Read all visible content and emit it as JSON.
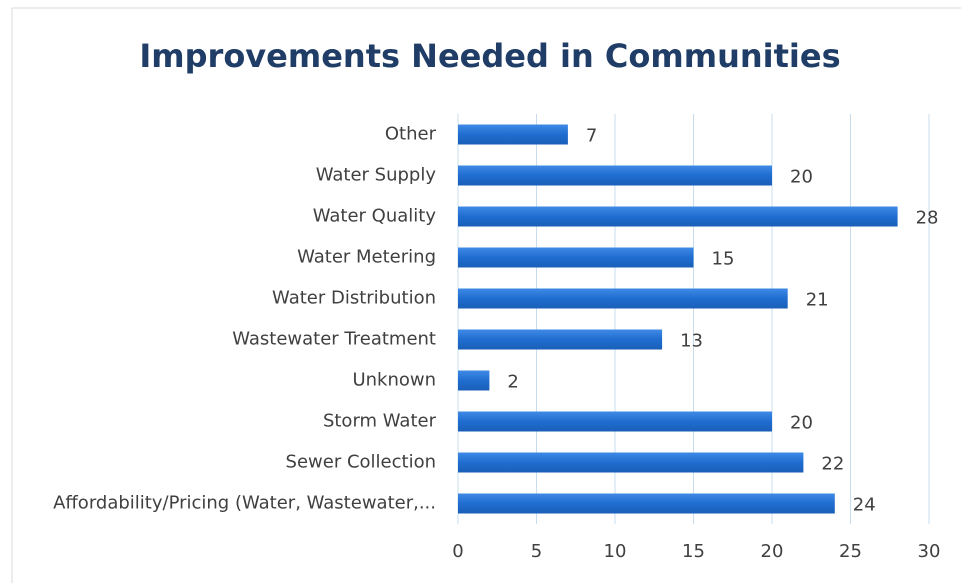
{
  "chart_data": {
    "type": "bar",
    "orientation": "horizontal",
    "title": "Improvements Needed in Communities",
    "categories": [
      "Other",
      "Water Supply",
      "Water Quality",
      "Water Metering",
      "Water Distribution",
      "Wastewater Treatment",
      "Unknown",
      "Storm Water",
      "Sewer Collection",
      "Affordability/Pricing (Water, Wastewater,..."
    ],
    "values": [
      7,
      20,
      28,
      15,
      21,
      13,
      2,
      20,
      22,
      24
    ],
    "color": "#1f6dd0",
    "xlim": [
      0,
      30
    ],
    "xticks": [
      0,
      5,
      10,
      15,
      20,
      25,
      30
    ],
    "grid": true
  }
}
